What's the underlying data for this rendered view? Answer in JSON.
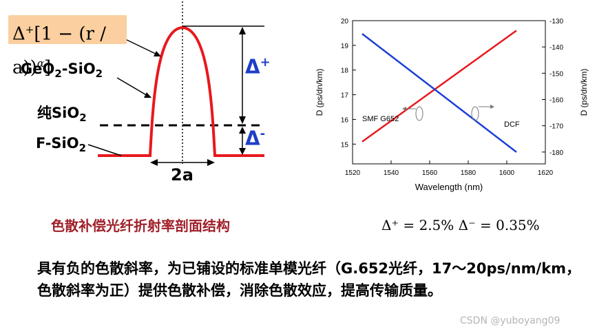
{
  "profile_diagram": {
    "formula_delta": "Δ",
    "formula_sup": "+",
    "formula_rest": "[1 − (r / a)",
    "formula_alpha": "α",
    "formula_close": "]",
    "label_geo_base": "GeO",
    "label_geo_sub1": "2",
    "label_geo_mid": "-SiO",
    "label_geo_sub2": "2",
    "label_pure": "纯SiO",
    "label_pure_sub": "2",
    "label_f_base": "F-SiO",
    "label_f_sub": "2",
    "delta_plus_base": "Δ",
    "delta_plus_sup": "+",
    "delta_minus_base": "Δ",
    "delta_minus_sup": "-",
    "width_label": "2a",
    "colors": {
      "profile": "#e8181c",
      "delta": "#1f3fc7",
      "formula_bg": "#fbcf9f"
    }
  },
  "caption": "色散补偿光纤折射率剖面结构",
  "params_text": "Δ⁺ = 2.5%     Δ⁻ = 0.35%",
  "body_text": "具有负的色散斜率，为已铺设的标准单模光纤（G.652光纤，17～20ps/nm/km，色散斜率为正）提供色散补偿，消除色散效应，提高传输质量。",
  "watermark": "CSDN @yuboyang09",
  "chart_data": {
    "type": "line",
    "xlabel": "Wavelength (nm)",
    "ylabel_left": "D (ps/dn/km)",
    "ylabel_right": "D (ps/dn/km)",
    "xlim": [
      1520,
      1620
    ],
    "ylim_left": [
      14.2,
      20
    ],
    "ylim_right": [
      -184.5,
      -130
    ],
    "x_ticks": [
      1520,
      1540,
      1560,
      1580,
      1600,
      1620
    ],
    "y_ticks_left": [
      15,
      16,
      17,
      18,
      19,
      20
    ],
    "y_ticks_right": [
      -180,
      -170,
      -160,
      -150,
      -140,
      -130
    ],
    "grid": false,
    "series": [
      {
        "name": "SMF G652",
        "axis": "left",
        "color": "#e8181c",
        "x": [
          1525,
          1605
        ],
        "y": [
          15.1,
          19.6
        ]
      },
      {
        "name": "DCF",
        "axis": "right",
        "color": "#1a3fd6",
        "x": [
          1525,
          1605
        ],
        "y": [
          -135,
          -180
        ]
      }
    ]
  }
}
